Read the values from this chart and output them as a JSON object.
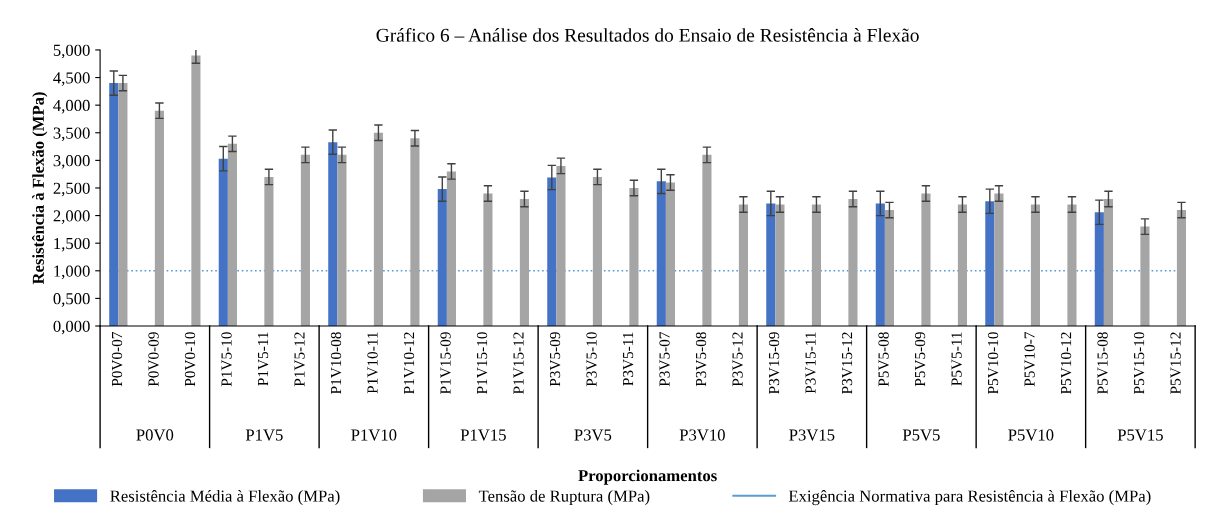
{
  "chart_data": {
    "type": "bar",
    "title": "Gráfico 6 – Análise dos Resultados do Ensaio de Resistência à Flexão",
    "xlabel": "Proporcionamentos",
    "ylabel": "Resistência à Flexão (MPa)",
    "categories": [
      "P0V0-07",
      "P0V0-09",
      "P0V0-10",
      "P1V5-10",
      "P1V5-11",
      "P1V5-12",
      "P1V10-08",
      "P1V10-11",
      "P1V10-12",
      "P1V15-09",
      "P1V15-10",
      "P1V15-12",
      "P3V5-09",
      "P3V5-10",
      "P3V5-11",
      "P3V5-07",
      "P3V5-08",
      "P3V5-12",
      "P3V15-09",
      "P3V15-11",
      "P3V15-12",
      "P5V5-08",
      "P5V5-09",
      "P5V5-11",
      "P5V10-10",
      "P5V10-7",
      "P5V10-12",
      "P5V15-08",
      "P5V15-10",
      "P5V15-12"
    ],
    "annotations": [
      "P0V0",
      "P1V5",
      "P1V10",
      "P1V15",
      "P3V5",
      "P3V10",
      "P3V15",
      "P5V5",
      "P5V10",
      "P5V15"
    ],
    "series": [
      {
        "name": "Resistência Média à Flexão (MPa)",
        "color": "#4472c4",
        "values": [
          4.4,
          null,
          null,
          3.03,
          null,
          null,
          3.33,
          null,
          null,
          2.48,
          null,
          null,
          2.69,
          null,
          null,
          2.62,
          null,
          null,
          2.22,
          null,
          null,
          2.22,
          null,
          null,
          2.26,
          null,
          null,
          2.06,
          null,
          null
        ],
        "errors": [
          0.22,
          null,
          null,
          0.22,
          null,
          null,
          0.22,
          null,
          null,
          0.22,
          null,
          null,
          0.22,
          null,
          null,
          0.22,
          null,
          null,
          0.22,
          null,
          null,
          0.22,
          null,
          null,
          0.22,
          null,
          null,
          0.22,
          null,
          null
        ]
      },
      {
        "name": "Tensão de Ruptura (MPa)",
        "color": "#a5a5a5",
        "values": [
          4.4,
          3.9,
          4.9,
          3.3,
          2.7,
          3.1,
          3.1,
          3.5,
          3.4,
          2.8,
          2.4,
          2.3,
          2.9,
          2.7,
          2.5,
          2.6,
          3.1,
          2.2,
          2.2,
          2.2,
          2.3,
          2.1,
          2.4,
          2.2,
          2.4,
          2.2,
          2.2,
          2.3,
          1.8,
          2.1
        ],
        "errors": [
          0.14,
          0.14,
          0.14,
          0.14,
          0.14,
          0.14,
          0.14,
          0.14,
          0.14,
          0.14,
          0.14,
          0.14,
          0.14,
          0.14,
          0.14,
          0.14,
          0.14,
          0.14,
          0.14,
          0.14,
          0.14,
          0.14,
          0.14,
          0.14,
          0.14,
          0.14,
          0.14,
          0.14,
          0.14,
          0.14
        ]
      }
    ],
    "ref_lines": [
      {
        "axis": "y",
        "value": 1,
        "label": "Exigência Normativa para Resistência à Flexão (MPa)",
        "color": "#5b9bd5",
        "line_style": "dotted"
      }
    ],
    "ylim": [
      0,
      5
    ],
    "yticks": [
      {
        "value": 0,
        "label": "0,000"
      },
      {
        "value": 0.5,
        "label": "0,500"
      },
      {
        "value": 1,
        "label": "1,000"
      },
      {
        "value": 1.5,
        "label": "1,500"
      },
      {
        "value": 2,
        "label": "2,000"
      },
      {
        "value": 2.5,
        "label": "2,500"
      },
      {
        "value": 3,
        "label": "3,000"
      },
      {
        "value": 3.5,
        "label": "3,500"
      },
      {
        "value": 4,
        "label": "4,000"
      },
      {
        "value": 4.5,
        "label": "4,500"
      },
      {
        "value": 5,
        "label": "5,000"
      }
    ],
    "grid": false,
    "legend": "bottom"
  }
}
